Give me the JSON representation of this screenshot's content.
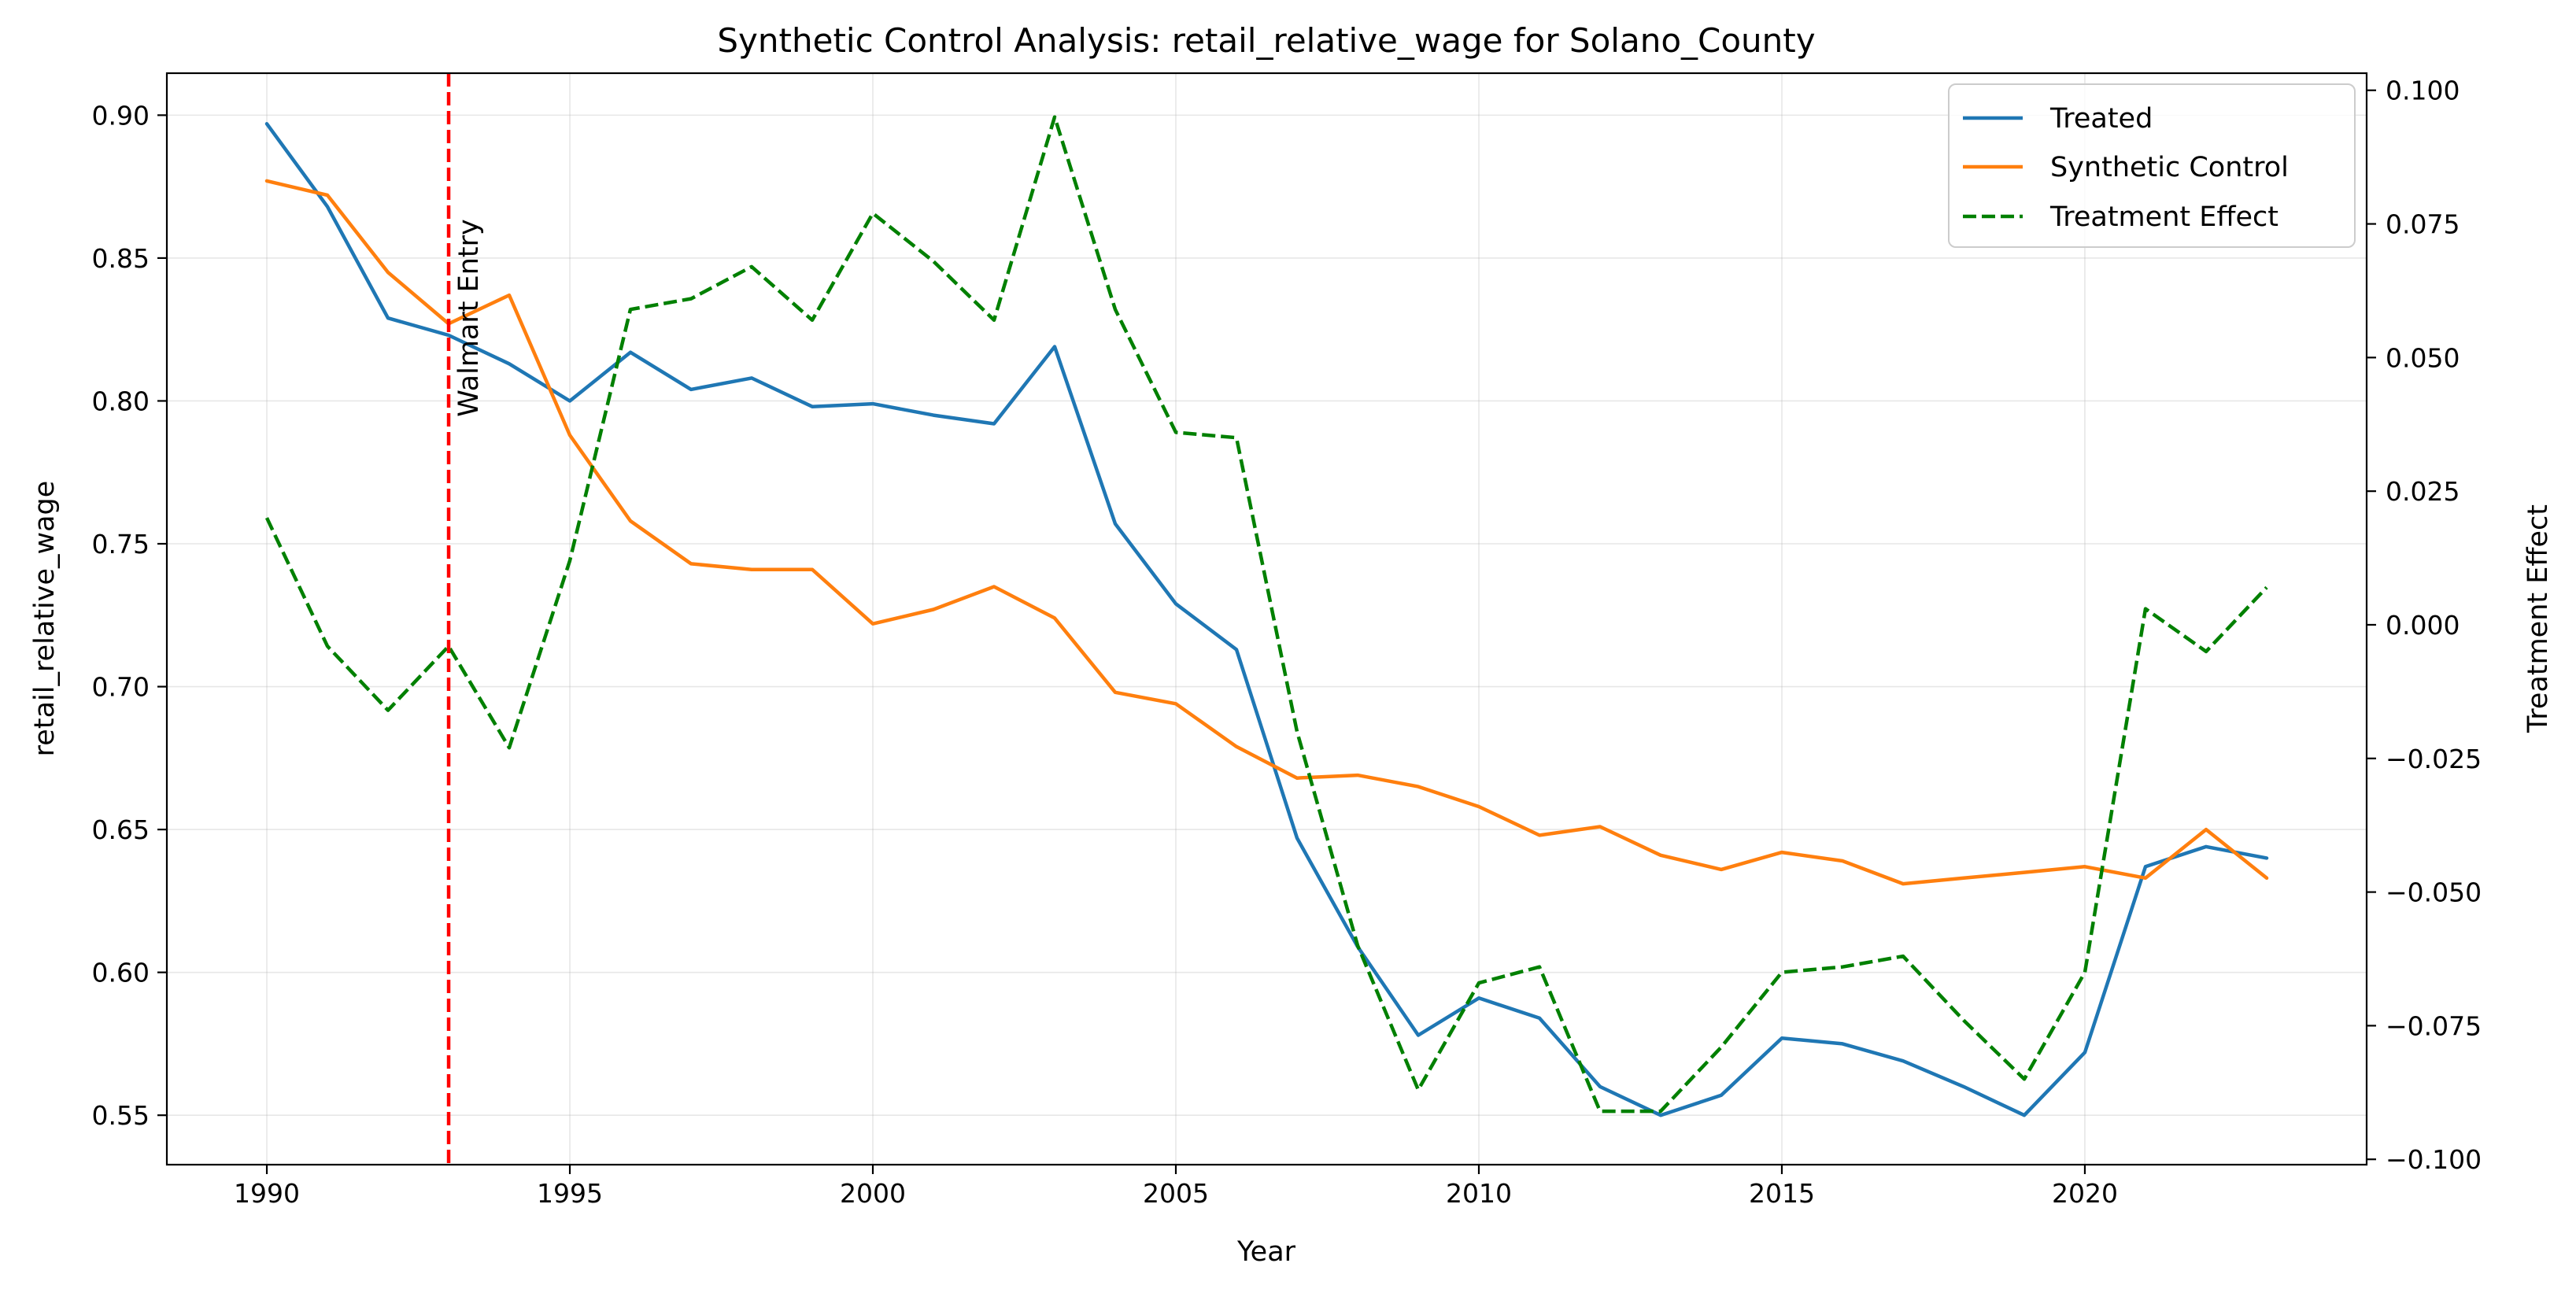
{
  "chart_data": {
    "type": "line",
    "title": "Synthetic Control Analysis: retail_relative_wage for Solano_County",
    "xlabel": "Year",
    "ylabel": "retail_relative_wage",
    "y2label": "Treatment Effect",
    "xlim": [
      1988.35,
      2024.65
    ],
    "ylim": [
      0.5327,
      0.9147
    ],
    "y2lim": [
      -0.101,
      0.1032
    ],
    "x_ticks": [
      1990,
      1995,
      2000,
      2005,
      2010,
      2015,
      2020
    ],
    "y_ticks": [
      "0.55",
      "0.60",
      "0.65",
      "0.70",
      "0.75",
      "0.80",
      "0.85",
      "0.90"
    ],
    "y2_ticks": [
      "−0.100",
      "−0.075",
      "−0.050",
      "−0.025",
      "0.000",
      "0.025",
      "0.050",
      "0.075",
      "0.100"
    ],
    "grid": true,
    "legend_position": "top-right",
    "x": [
      1990,
      1991,
      1992,
      1993,
      1994,
      1995,
      1996,
      1997,
      1998,
      1999,
      2000,
      2001,
      2002,
      2003,
      2004,
      2005,
      2006,
      2007,
      2008,
      2009,
      2010,
      2011,
      2012,
      2013,
      2014,
      2015,
      2016,
      2017,
      2018,
      2019,
      2020,
      2021,
      2022,
      2023
    ],
    "series": [
      {
        "name": "Treated",
        "axis": "left",
        "color": "#1f77b4",
        "style": "solid",
        "values": [
          0.897,
          0.868,
          0.829,
          0.823,
          0.813,
          0.8,
          0.817,
          0.804,
          0.808,
          0.798,
          0.799,
          0.795,
          0.792,
          0.819,
          0.757,
          0.729,
          0.713,
          0.647,
          0.609,
          0.578,
          0.591,
          0.584,
          0.56,
          0.55,
          0.557,
          0.577,
          0.575,
          0.569,
          0.56,
          0.55,
          0.572,
          0.637,
          0.644,
          0.64
        ]
      },
      {
        "name": "Synthetic Control",
        "axis": "left",
        "color": "#ff7f0e",
        "style": "solid",
        "values": [
          0.877,
          0.872,
          0.845,
          0.827,
          0.837,
          0.788,
          0.758,
          0.743,
          0.741,
          0.741,
          0.722,
          0.727,
          0.735,
          0.724,
          0.698,
          0.694,
          0.679,
          0.668,
          0.669,
          0.665,
          0.658,
          0.648,
          0.651,
          0.641,
          0.636,
          0.642,
          0.639,
          0.631,
          0.633,
          0.635,
          0.637,
          0.633,
          0.65,
          0.633
        ]
      },
      {
        "name": "Treatment Effect",
        "axis": "right",
        "color": "#008000",
        "style": "dashed",
        "values": [
          0.02,
          -0.004,
          -0.016,
          -0.004,
          -0.023,
          0.012,
          0.059,
          0.061,
          0.067,
          0.057,
          0.077,
          0.068,
          0.057,
          0.095,
          0.059,
          0.036,
          0.035,
          -0.02,
          -0.06,
          -0.087,
          -0.067,
          -0.064,
          -0.091,
          -0.091,
          -0.079,
          -0.065,
          -0.064,
          -0.062,
          -0.074,
          -0.085,
          -0.065,
          0.003,
          -0.005,
          0.007
        ]
      }
    ],
    "annotations": [
      {
        "x": 1993,
        "label": "Walmart Entry",
        "color": "#ff0000",
        "style": "dashed-vertical"
      }
    ]
  }
}
